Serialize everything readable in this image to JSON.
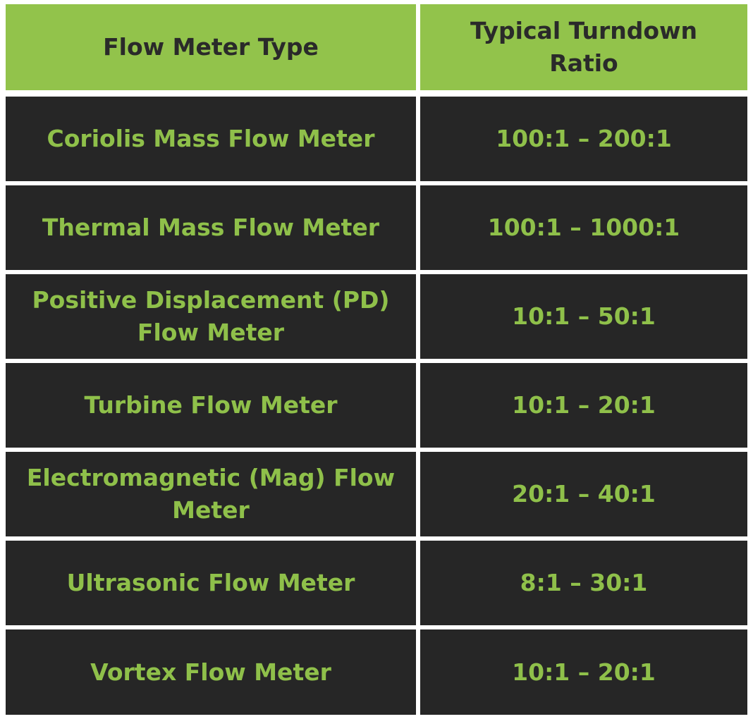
{
  "table": {
    "headers": {
      "type": "Flow Meter Type",
      "ratio": "Typical Turndown Ratio"
    },
    "rows": [
      {
        "type": "Coriolis Mass Flow Meter",
        "ratio": "100:1 – 200:1"
      },
      {
        "type": "Thermal Mass Flow Meter",
        "ratio": "100:1 – 1000:1"
      },
      {
        "type": "Positive Displacement (PD) Flow Meter",
        "ratio": "10:1 – 50:1"
      },
      {
        "type": "Turbine Flow Meter",
        "ratio": "10:1 – 20:1"
      },
      {
        "type": "Electromagnetic (Mag) Flow Meter",
        "ratio": "20:1 – 40:1"
      },
      {
        "type": "Ultrasonic Flow Meter",
        "ratio": "8:1 – 30:1"
      },
      {
        "type": "Vortex Flow Meter",
        "ratio": "10:1 – 20:1"
      }
    ]
  },
  "colors": {
    "header_bg": "#92c34b",
    "header_text": "#2a2a2a",
    "row_bg": "#262626",
    "row_text": "#8fc04a"
  }
}
